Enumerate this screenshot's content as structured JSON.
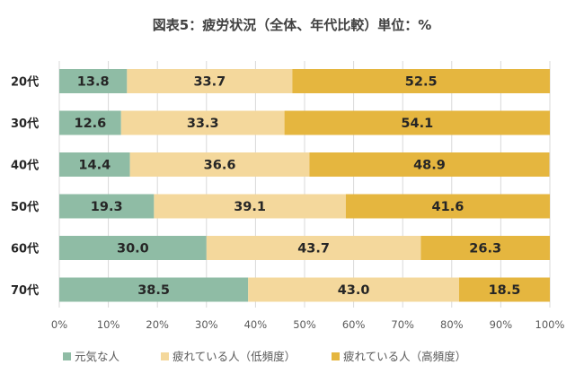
{
  "chart_data": {
    "type": "bar",
    "orientation": "horizontal",
    "stacked": true,
    "title": "図表5：疲労状況（全体、年代比較）単位：%",
    "categories": [
      "20代",
      "30代",
      "40代",
      "50代",
      "60代",
      "70代"
    ],
    "series": [
      {
        "name": "元気な人",
        "color": "#8fbca5",
        "values": [
          13.8,
          12.6,
          14.4,
          19.3,
          30.0,
          38.5
        ]
      },
      {
        "name": "疲れている人（低頻度）",
        "color": "#f4d89c",
        "values": [
          33.7,
          33.3,
          36.6,
          39.1,
          43.7,
          43.0
        ]
      },
      {
        "name": "疲れている人（高頻度）",
        "color": "#e5b63f",
        "values": [
          52.5,
          54.1,
          48.9,
          41.6,
          26.3,
          18.5
        ]
      }
    ],
    "data_labels": [
      [
        "13.8",
        "12.6",
        "14.4",
        "19.3",
        "30.0",
        "38.5"
      ],
      [
        "33.7",
        "33.3",
        "36.6",
        "39.1",
        "43.7",
        "43.0"
      ],
      [
        "52.5",
        "54.1",
        "48.9",
        "41.6",
        "26.3",
        "18.5"
      ]
    ],
    "x_ticks": [
      "0%",
      "10%",
      "20%",
      "30%",
      "40%",
      "50%",
      "60%",
      "70%",
      "80%",
      "90%",
      "100%"
    ],
    "xlim": [
      0,
      100
    ],
    "grid": true,
    "legend_position": "bottom"
  }
}
